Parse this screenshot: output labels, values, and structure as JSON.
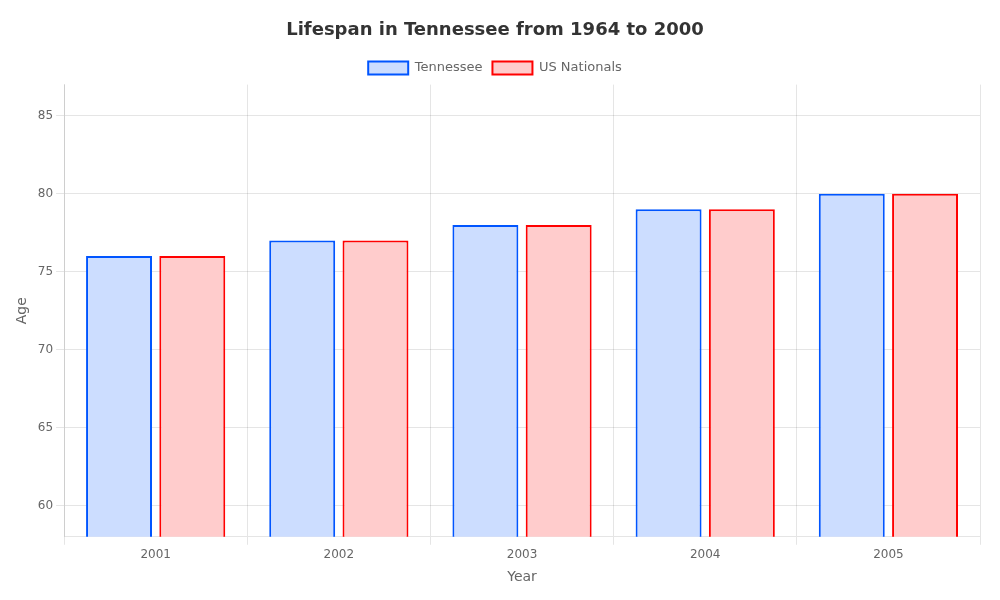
{
  "chart_data": {
    "type": "bar",
    "title": "Lifespan in Tennessee from 1964 to 2000",
    "xlabel": "Year",
    "ylabel": "Age",
    "categories": [
      "2001",
      "2002",
      "2003",
      "2004",
      "2005"
    ],
    "series": [
      {
        "name": "Tennessee",
        "color": "#0055ff",
        "values": [
          76,
          77,
          78,
          79,
          80
        ]
      },
      {
        "name": "US Nationals",
        "color": "#ff0000",
        "values": [
          76,
          77,
          78,
          79,
          80
        ]
      }
    ],
    "ylim": [
      58,
      87
    ],
    "yticks": [
      60,
      65,
      70,
      75,
      80,
      85
    ],
    "grid": true,
    "legend": "top"
  }
}
